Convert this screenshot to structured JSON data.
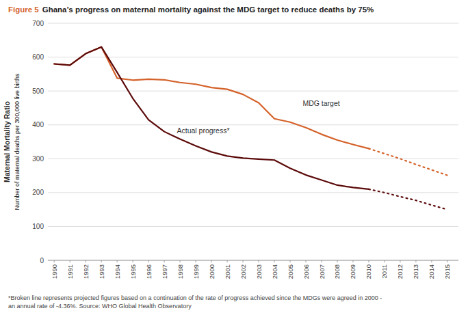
{
  "chart_data": {
    "type": "line",
    "title": "Figure 5",
    "subtitle": "Ghana’s progress on maternal mortality against the MDG target to reduce deaths by 75%",
    "ylabel": "Maternal Mortality Ratio",
    "ylabel_note": "Number of maternal deaths per 300,000 live births",
    "footnote": "*Broken line represents projected figures based on a continuation of the rate of progress achieved since the MDGs were agreed in 2000 -\nan annual rate of -4.36%. Source: WHO Global Health Observatory",
    "title_color": "#D4622A",
    "xlim": [
      1989.6,
      2015.7
    ],
    "ylim": [
      0,
      700
    ],
    "xticks": [
      1990,
      1991,
      1992,
      1993,
      1994,
      1995,
      1996,
      1997,
      1998,
      1999,
      2000,
      2001,
      2002,
      2003,
      2004,
      2005,
      2006,
      2007,
      2008,
      2009,
      2010,
      2011,
      2012,
      2013,
      2014,
      2015
    ],
    "yticks": [
      0,
      100,
      200,
      300,
      400,
      500,
      600,
      700
    ],
    "grid": true,
    "series": [
      {
        "color": "#D4622A",
        "line_style": "solid",
        "x": [
          1990,
          1991,
          1992,
          1993,
          1994,
          1995,
          1996,
          1997,
          1998,
          1999,
          2000,
          2001,
          2002,
          2003,
          2004,
          2005,
          2006,
          2007,
          2008,
          2009,
          2010
        ],
        "values": [
          580,
          576,
          610,
          630,
          538,
          532,
          535,
          533,
          525,
          520,
          510,
          505,
          490,
          465,
          418,
          408,
          392,
          372,
          355,
          342,
          330
        ]
      },
      {
        "color": "#D4622A",
        "line_style": "dotted",
        "x": [
          2010,
          2011,
          2012,
          2013,
          2014,
          2015
        ],
        "values": [
          330,
          315,
          300,
          283,
          267,
          251
        ]
      },
      {
        "color": "#5C0A0A",
        "line_style": "solid",
        "x": [
          1990,
          1991,
          1992,
          1993,
          1994,
          1995,
          1996,
          1997,
          1998,
          1999,
          2000,
          2001,
          2002,
          2003,
          2004,
          2005,
          2006,
          2007,
          2008,
          2009,
          2010
        ],
        "values": [
          580,
          576,
          610,
          630,
          555,
          478,
          415,
          380,
          358,
          338,
          320,
          308,
          302,
          299,
          296,
          272,
          252,
          237,
          222,
          215,
          210
        ]
      },
      {
        "color": "#5C0A0A",
        "line_style": "dotted",
        "x": [
          2010,
          2011,
          2012,
          2013,
          2014,
          2015
        ],
        "values": [
          210,
          200,
          188,
          177,
          163,
          150
        ]
      }
    ],
    "annotations": [
      {
        "text": "Actual progress*",
        "x": 1997.8,
        "y": 375
      },
      {
        "text": "MDG target",
        "x": 2005.8,
        "y": 455
      }
    ]
  }
}
